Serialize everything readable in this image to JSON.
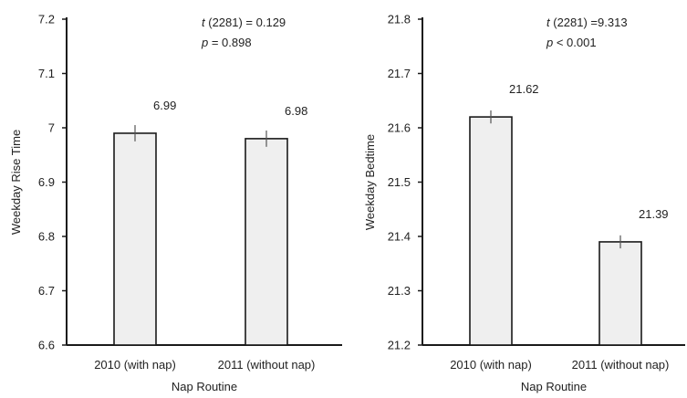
{
  "chart_data": [
    {
      "type": "bar",
      "categories": [
        "2010 (with nap)",
        "2011 (without nap)"
      ],
      "values": [
        6.99,
        6.98
      ],
      "value_labels": [
        "6.99",
        "6.98"
      ],
      "error": [
        0.015,
        0.015
      ],
      "xlabel": "Nap Routine",
      "ylabel": "Weekday Rise Time",
      "ylim": [
        6.6,
        7.2
      ],
      "yticks": [
        6.6,
        6.7,
        6.8,
        6.9,
        7.0,
        7.1,
        7.2
      ],
      "ytick_labels": [
        "6.6",
        "6.7",
        "6.8",
        "6.9",
        "7",
        "7.1",
        "7.2"
      ],
      "stat_t_prefix": "t",
      "stat_t_rest": " (2281) = 0.129",
      "stat_p_prefix": "p",
      "stat_p_rest": " = 0.898",
      "grid": false
    },
    {
      "type": "bar",
      "categories": [
        "2010 (with nap)",
        "2011 (without nap)"
      ],
      "values": [
        21.62,
        21.39
      ],
      "value_labels": [
        "21.62",
        "21.39"
      ],
      "error": [
        0.012,
        0.012
      ],
      "xlabel": "Nap Routine",
      "ylabel": "Weekday Bedtime",
      "ylim": [
        21.2,
        21.8
      ],
      "yticks": [
        21.2,
        21.3,
        21.4,
        21.5,
        21.6,
        21.7,
        21.8
      ],
      "ytick_labels": [
        "21.2",
        "21.3",
        "21.4",
        "21.5",
        "21.6",
        "21.7",
        "21.8"
      ],
      "stat_t_prefix": "t",
      "stat_t_rest": " (2281) =9.313",
      "stat_p_prefix": "p",
      "stat_p_rest": " < 0.001",
      "grid": false
    }
  ]
}
